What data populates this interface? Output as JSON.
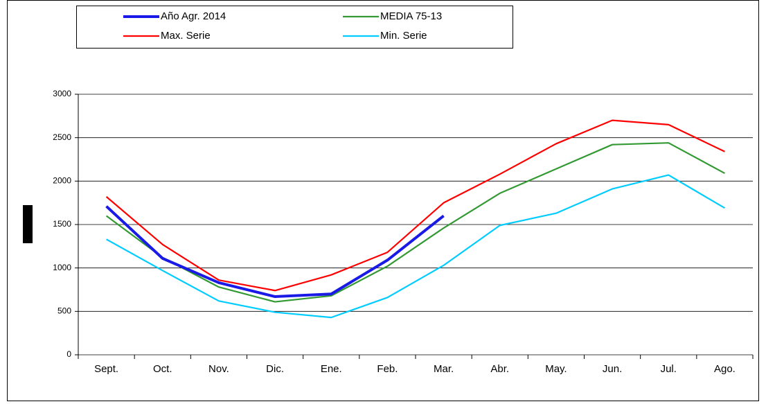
{
  "chart_data": {
    "type": "line",
    "categories": [
      "Sept.",
      "Oct.",
      "Nov.",
      "Dic.",
      "Ene.",
      "Feb.",
      "Mar.",
      "Abr.",
      "May.",
      "Jun.",
      "Jul.",
      "Ago."
    ],
    "series": [
      {
        "name": "Año Agr. 2014",
        "color": "#1a1ae6",
        "values": [
          1710,
          1110,
          830,
          670,
          700,
          1090,
          1600,
          null,
          null,
          null,
          null,
          null
        ]
      },
      {
        "name": "MEDIA 75-13",
        "color": "#339933",
        "values": [
          1600,
          1120,
          780,
          610,
          680,
          1020,
          1460,
          1860,
          2140,
          2420,
          2440,
          2090
        ]
      },
      {
        "name": "Max. Serie",
        "color": "#ff0000",
        "values": [
          1820,
          1270,
          860,
          740,
          920,
          1180,
          1750,
          2080,
          2430,
          2700,
          2650,
          2340
        ]
      },
      {
        "name": "Min. Serie",
        "color": "#00ccff",
        "values": [
          1330,
          970,
          620,
          490,
          430,
          660,
          1030,
          1490,
          1630,
          1910,
          2070,
          1690
        ]
      }
    ],
    "ylim": [
      0,
      3000
    ],
    "yticks": [
      0,
      500,
      1000,
      1500,
      2000,
      2500,
      3000
    ],
    "grid": true
  }
}
